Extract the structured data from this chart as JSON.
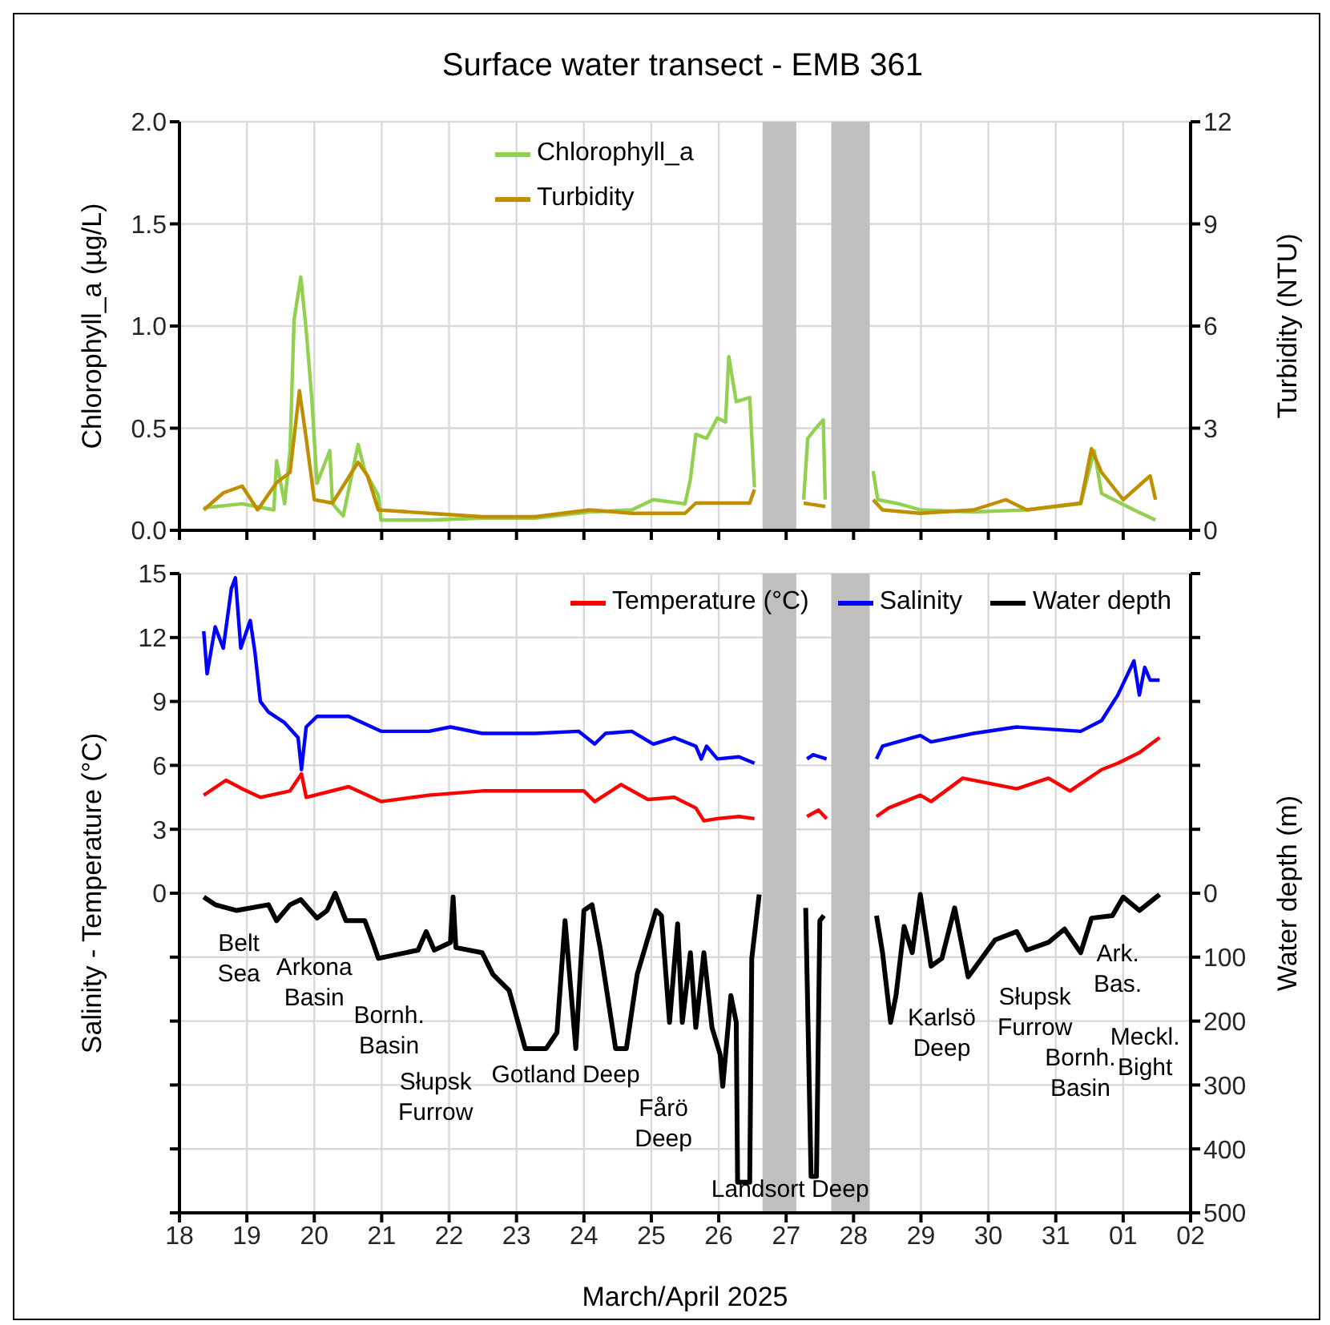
{
  "chart_data": [
    {
      "type": "line",
      "title": "Surface water transect - EMB 361",
      "ylabel": "Chlorophyll_a (µg/L)",
      "y2label": "Turbidity (NTU)",
      "xlim": [
        "2025-03-18",
        "2025-04-02"
      ],
      "xticks": [
        {
          "value": "2025-03-18",
          "label": null
        },
        {
          "value": "2025-03-19",
          "label": null
        },
        {
          "value": "2025-03-20",
          "label": null
        },
        {
          "value": "2025-03-21",
          "label": null
        },
        {
          "value": "2025-03-22",
          "label": null
        },
        {
          "value": "2025-03-23",
          "label": null
        },
        {
          "value": "2025-03-24",
          "label": null
        },
        {
          "value": "2025-03-25",
          "label": null
        },
        {
          "value": "2025-03-26",
          "label": null
        },
        {
          "value": "2025-03-27",
          "label": null
        },
        {
          "value": "2025-03-28",
          "label": null
        },
        {
          "value": "2025-03-29",
          "label": null
        },
        {
          "value": "2025-03-30",
          "label": null
        },
        {
          "value": "2025-03-31",
          "label": null
        },
        {
          "value": "2025-04-01",
          "label": null
        },
        {
          "value": "2025-04-02",
          "label": null
        }
      ],
      "ylim": [
        0,
        2
      ],
      "yticks": [
        {
          "value": 0,
          "label": "0.0"
        },
        0.5,
        {
          "value": 1,
          "label": "1.0"
        },
        1.5,
        {
          "value": 2,
          "label": "2.0"
        }
      ],
      "y2lim": [
        0,
        12
      ],
      "y2ticks": [
        0,
        3,
        6,
        9,
        12
      ],
      "tick_labels": "y",
      "grid": true,
      "legend": "top",
      "bands": [
        {
          "axis": "x",
          "from": "2025-03-26T15:36",
          "to": "2025-03-27T03:36",
          "color": "#bfbfbf"
        },
        {
          "axis": "x",
          "from": "2025-03-27T16:05",
          "to": "2025-03-28T05:46",
          "color": "#bfbfbf"
        }
      ],
      "series": [
        {
          "name": "Chlorophyll_a",
          "color": "#92d050",
          "x": [
            "2025-03-18T08:38",
            "2025-03-18T22:19",
            "2025-03-19T09:36",
            "2025-03-19T10:34",
            "2025-03-19T13:26",
            "2025-03-19T15:22",
            "2025-03-19T16:48",
            "2025-03-19T19:12",
            "2025-03-19T21:07",
            "2025-03-19T23:02",
            "2025-03-20T00:58",
            "2025-03-20T05:31",
            "2025-03-20T06:29",
            "2025-03-20T10:19",
            "2025-03-20T15:36",
            "2025-03-20T18:00",
            "2025-03-20T22:48",
            "2025-03-20T23:46",
            "2025-03-21T16:48",
            "2025-03-22T11:46",
            "2025-03-23T06:43",
            "2025-03-24T01:55",
            "2025-03-24T17:02",
            "2025-03-25T00:43",
            "2025-03-25T12:00",
            "2025-03-25T13:55",
            "2025-03-25T15:50",
            "2025-03-25T19:41",
            "2025-03-25T23:31",
            "2025-03-26T02:24",
            "2025-03-26T03:36",
            "2025-03-26T06:14",
            "2025-03-26T11:02",
            "2025-03-26T12:43",
            "2025-03-26T14:24",
            "2025-03-27T06:14",
            "2025-03-27T07:41",
            "2025-03-27T10:34",
            "2025-03-27T13:12",
            "2025-03-27T13:55",
            "2025-03-27T14:53",
            "2025-03-28T06:58",
            "2025-03-28T08:38",
            "2025-03-28T16:05",
            "2025-03-28T23:46",
            "2025-03-29T18:43",
            "2025-03-30T13:41",
            "2025-03-31T08:53",
            "2025-03-31T13:41",
            "2025-03-31T16:19",
            "2025-04-01T03:50",
            "2025-04-01T11:31"
          ],
          "values": [
            0.11,
            0.13,
            0.1,
            0.34,
            0.13,
            0.39,
            1.03,
            1.24,
            0.98,
            0.66,
            0.23,
            0.39,
            0.13,
            0.07,
            0.42,
            0.29,
            0.17,
            0.05,
            0.05,
            0.06,
            0.06,
            0.09,
            0.1,
            0.15,
            0.13,
            0.25,
            0.47,
            0.45,
            0.55,
            0.53,
            0.85,
            0.63,
            0.65,
            0.21,
            null,
            0.15,
            0.45,
            0.5,
            0.54,
            0.15,
            null,
            0.29,
            0.15,
            0.13,
            0.1,
            0.09,
            0.1,
            0.13,
            0.39,
            0.18,
            0.1,
            0.05
          ]
        },
        {
          "name": "Turbidity",
          "color": "#bf8f00",
          "axis": "y2",
          "x": [
            "2025-03-18T08:38",
            "2025-03-18T15:36",
            "2025-03-18T22:19",
            "2025-03-19T03:50",
            "2025-03-19T10:34",
            "2025-03-19T15:22",
            "2025-03-19T18:43",
            "2025-03-19T21:07",
            "2025-03-20T00:00",
            "2025-03-20T06:29",
            "2025-03-20T15:36",
            "2025-03-20T18:58",
            "2025-03-20T22:48",
            "2025-03-21T16:48",
            "2025-03-22T11:46",
            "2025-03-23T06:43",
            "2025-03-24T01:55",
            "2025-03-24T17:02",
            "2025-03-25T12:00",
            "2025-03-25T15:50",
            "2025-03-26T11:02",
            "2025-03-26T12:43",
            "2025-03-26T14:24",
            "2025-03-27T06:14",
            "2025-03-27T13:55",
            "2025-03-27T14:53",
            "2025-03-28T06:58",
            "2025-03-28T10:19",
            "2025-03-28T23:46",
            "2025-03-29T18:43",
            "2025-03-30T06:14",
            "2025-03-30T13:41",
            "2025-03-31T08:53",
            "2025-03-31T12:43",
            "2025-03-31T16:19",
            "2025-04-01T00:00",
            "2025-04-01T09:36",
            "2025-04-01T11:31"
          ],
          "values": [
            0.6,
            1.1,
            1.3,
            0.6,
            1.4,
            1.7,
            4.1,
            2.7,
            0.9,
            0.8,
            2.0,
            1.6,
            0.6,
            0.5,
            0.4,
            0.4,
            0.6,
            0.5,
            0.5,
            0.8,
            0.8,
            1.2,
            null,
            0.8,
            0.7,
            null,
            0.9,
            0.6,
            0.5,
            0.6,
            0.9,
            0.6,
            0.8,
            2.4,
            1.7,
            0.9,
            1.6,
            0.9
          ]
        }
      ]
    },
    {
      "type": "line",
      "ylabel": "Salinity -  Temperature (°C)",
      "y2label": "Water depth (m)",
      "xlabel": "March/April 2025",
      "xlim": [
        "2025-03-18",
        "2025-04-02"
      ],
      "xticks": [
        {
          "value": "2025-03-18",
          "label": "18"
        },
        {
          "value": "2025-03-19",
          "label": "19"
        },
        {
          "value": "2025-03-20",
          "label": "20"
        },
        {
          "value": "2025-03-21",
          "label": "21"
        },
        {
          "value": "2025-03-22",
          "label": "22"
        },
        {
          "value": "2025-03-23",
          "label": "23"
        },
        {
          "value": "2025-03-24",
          "label": "24"
        },
        {
          "value": "2025-03-25",
          "label": "25"
        },
        {
          "value": "2025-03-26",
          "label": "26"
        },
        {
          "value": "2025-03-27",
          "label": "27"
        },
        {
          "value": "2025-03-28",
          "label": "28"
        },
        {
          "value": "2025-03-29",
          "label": "29"
        },
        {
          "value": "2025-03-30",
          "label": "30"
        },
        {
          "value": "2025-03-31",
          "label": "31"
        },
        {
          "value": "2025-04-01",
          "label": "01"
        },
        {
          "value": "2025-04-02",
          "label": "02"
        }
      ],
      "ylim": [
        -15,
        15
      ],
      "yticks": [
        {
          "value": -15,
          "label": null
        },
        {
          "value": -12,
          "label": null
        },
        {
          "value": -9,
          "label": null
        },
        {
          "value": -6,
          "label": null
        },
        {
          "value": -3,
          "label": null
        },
        0,
        3,
        6,
        9,
        12,
        15
      ],
      "y2lim": [
        500,
        -500
      ],
      "y2ticks": [
        {
          "value": -500,
          "label": null
        },
        {
          "value": -400,
          "label": null
        },
        {
          "value": -300,
          "label": null
        },
        {
          "value": -200,
          "label": null
        },
        {
          "value": -100,
          "label": null
        },
        0,
        100,
        200,
        300,
        400,
        500
      ],
      "grid": true,
      "legend": "top right",
      "bands": [
        {
          "axis": "x",
          "from": "2025-03-26T15:36",
          "to": "2025-03-27T03:36",
          "color": "#bfbfbf"
        },
        {
          "axis": "x",
          "from": "2025-03-27T16:05",
          "to": "2025-03-28T05:46",
          "color": "#bfbfbf"
        }
      ],
      "annotations": [
        "Belt\nSea",
        "Arkona\nBasin",
        "Bornh.\nBasin",
        "Słupsk\nFurrow",
        "Gotland Deep",
        "Fårö\nDeep",
        "Landsort Deep",
        "Karlsö\nDeep",
        "Słupsk\nFurrow",
        "Bornh.\nBasin",
        "Ark.\nBas.",
        "Meckl.\nBight"
      ],
      "series": [
        {
          "name": "Temperature (°C)",
          "color": "#ff0000",
          "x": [
            "2025-03-18T08:38",
            "2025-03-18T16:34",
            "2025-03-18T22:19",
            "2025-03-19T04:48",
            "2025-03-19T15:22",
            "2025-03-19T19:26",
            "2025-03-19T21:07",
            "2025-03-20T12:14",
            "2025-03-20T23:46",
            "2025-03-21T16:48",
            "2025-03-22T11:46",
            "2025-03-23T06:43",
            "2025-03-24T00:00",
            "2025-03-24T03:50",
            "2025-03-24T13:12",
            "2025-03-24T22:48",
            "2025-03-25T08:10",
            "2025-03-25T15:50",
            "2025-03-25T18:43",
            "2025-03-25T23:31",
            "2025-03-26T07:12",
            "2025-03-26T12:43",
            "2025-03-26T14:24",
            "2025-03-27T07:26",
            "2025-03-27T11:31",
            "2025-03-27T14:24",
            "2025-03-27T14:53",
            "2025-03-28T08:10",
            "2025-03-28T12:29",
            "2025-03-28T23:46",
            "2025-03-29T03:36",
            "2025-03-29T14:53",
            "2025-03-30T10:05",
            "2025-03-30T21:22",
            "2025-03-31T05:02",
            "2025-03-31T16:19",
            "2025-03-31T22:05",
            "2025-04-01T05:46",
            "2025-04-01T12:58"
          ],
          "values": [
            4.6,
            5.3,
            4.9,
            4.5,
            4.8,
            5.6,
            4.5,
            5.0,
            4.3,
            4.6,
            4.8,
            4.8,
            4.8,
            4.3,
            5.1,
            4.4,
            4.5,
            4.0,
            3.4,
            3.5,
            3.6,
            3.5,
            null,
            3.6,
            3.9,
            3.5,
            null,
            3.6,
            4.0,
            4.6,
            4.3,
            5.4,
            4.9,
            5.4,
            4.8,
            5.8,
            6.1,
            6.6,
            7.3
          ]
        },
        {
          "name": "Salinity",
          "color": "#0000ff",
          "x": [
            "2025-03-18T08:38",
            "2025-03-18T09:50",
            "2025-03-18T12:43",
            "2025-03-18T15:36",
            "2025-03-18T18:29",
            "2025-03-18T19:55",
            "2025-03-18T21:50",
            "2025-03-19T01:12",
            "2025-03-19T02:53",
            "2025-03-19T04:48",
            "2025-03-19T07:41",
            "2025-03-19T13:26",
            "2025-03-19T18:14",
            "2025-03-19T19:26",
            "2025-03-19T21:07",
            "2025-03-20T00:58",
            "2025-03-20T12:14",
            "2025-03-20T23:46",
            "2025-03-21T16:48",
            "2025-03-22T00:29",
            "2025-03-22T11:46",
            "2025-03-23T06:43",
            "2025-03-23T22:05",
            "2025-03-24T03:50",
            "2025-03-24T07:41",
            "2025-03-24T17:02",
            "2025-03-25T00:43",
            "2025-03-25T08:10",
            "2025-03-25T15:50",
            "2025-03-25T17:46",
            "2025-03-25T19:41",
            "2025-03-25T23:31",
            "2025-03-26T07:12",
            "2025-03-26T12:43",
            "2025-03-26T14:24",
            "2025-03-27T07:26",
            "2025-03-27T09:36",
            "2025-03-27T14:24",
            "2025-03-27T14:53",
            "2025-03-28T08:10",
            "2025-03-28T10:19",
            "2025-03-28T23:46",
            "2025-03-29T03:36",
            "2025-03-29T18:43",
            "2025-03-30T10:05",
            "2025-03-31T08:53",
            "2025-03-31T16:19",
            "2025-03-31T22:05",
            "2025-04-01T03:50",
            "2025-04-01T05:46",
            "2025-04-01T07:41",
            "2025-04-01T09:36",
            "2025-04-01T12:58"
          ],
          "values": [
            12.3,
            10.3,
            12.5,
            11.5,
            14.3,
            14.8,
            11.5,
            12.8,
            11.3,
            9.0,
            8.5,
            8.0,
            7.3,
            5.8,
            7.8,
            8.3,
            8.3,
            7.6,
            7.6,
            7.8,
            7.5,
            7.5,
            7.6,
            7.0,
            7.5,
            7.6,
            7.0,
            7.3,
            6.9,
            6.3,
            6.9,
            6.3,
            6.4,
            6.1,
            null,
            6.3,
            6.5,
            6.3,
            null,
            6.3,
            6.9,
            7.4,
            7.1,
            7.5,
            7.8,
            7.6,
            8.1,
            9.3,
            10.9,
            9.3,
            10.6,
            10.0,
            10.0
          ]
        },
        {
          "name": "Water depth",
          "color": "#000000",
          "axis": "y2",
          "x": [
            "2025-03-18T08:38",
            "2025-03-18T12:43",
            "2025-03-18T20:24",
            "2025-03-19T07:41",
            "2025-03-19T10:34",
            "2025-03-19T15:22",
            "2025-03-19T19:12",
            "2025-03-20T00:58",
            "2025-03-20T04:34",
            "2025-03-20T07:26",
            "2025-03-20T11:17",
            "2025-03-20T18:00",
            "2025-03-20T20:53",
            "2025-03-20T22:48",
            "2025-03-21T12:58",
            "2025-03-21T15:50",
            "2025-03-21T18:43",
            "2025-03-22T00:29",
            "2025-03-22T01:26",
            "2025-03-22T02:24",
            "2025-03-22T11:46",
            "2025-03-22T15:36",
            "2025-03-22T21:22",
            "2025-03-23T03:07",
            "2025-03-23T10:34",
            "2025-03-23T14:24",
            "2025-03-23T17:17",
            "2025-03-23T21:07",
            "2025-03-24T00:00",
            "2025-03-24T02:53",
            "2025-03-24T05:46",
            "2025-03-24T11:17",
            "2025-03-24T15:07",
            "2025-03-24T18:58",
            "2025-03-25T01:41",
            "2025-03-25T03:36",
            "2025-03-25T06:29",
            "2025-03-25T09:22",
            "2025-03-25T11:02",
            "2025-03-25T13:55",
            "2025-03-25T15:50",
            "2025-03-25T18:43",
            "2025-03-25T21:36",
            "2025-03-26T00:29",
            "2025-03-26T01:26",
            "2025-03-26T04:19",
            "2025-03-26T06:14",
            "2025-03-26T06:43",
            "2025-03-26T11:02",
            "2025-03-26T11:46",
            "2025-03-26T14:24",
            "2025-03-26T15:36",
            "2025-03-27T06:58",
            "2025-03-27T08:53",
            "2025-03-27T10:48",
            "2025-03-27T12:00",
            "2025-03-27T13:26",
            "2025-03-27T21:36",
            "2025-03-28T08:10",
            "2025-03-28T10:19",
            "2025-03-28T13:12",
            "2025-03-28T15:07",
            "2025-03-28T18:00",
            "2025-03-28T20:53",
            "2025-03-28T23:46",
            "2025-03-29T03:36",
            "2025-03-29T07:26",
            "2025-03-29T12:00",
            "2025-03-29T16:48",
            "2025-03-30T02:24",
            "2025-03-30T10:05",
            "2025-03-30T13:41",
            "2025-03-30T21:22",
            "2025-03-31T03:07",
            "2025-03-31T08:53",
            "2025-03-31T12:43",
            "2025-03-31T20:10",
            "2025-04-01T00:00",
            "2025-04-01T05:46",
            "2025-04-01T12:58"
          ],
          "values": [
            6,
            18,
            27,
            18,
            43,
            18,
            10,
            39,
            27,
            0,
            43,
            43,
            77,
            102,
            89,
            60,
            89,
            77,
            6,
            85,
            93,
            127,
            152,
            243,
            243,
            218,
            43,
            243,
            27,
            18,
            85,
            243,
            243,
            127,
            27,
            35,
            202,
            48,
            202,
            93,
            210,
            93,
            210,
            252,
            302,
            160,
            202,
            452,
            452,
            102,
            2,
            null,
            23,
            443,
            443,
            43,
            35,
            null,
            35,
            93,
            202,
            160,
            52,
            93,
            2,
            114,
            102,
            23,
            131,
            73,
            60,
            89,
            77,
            56,
            93,
            39,
            35,
            6,
            27,
            2
          ]
        }
      ]
    }
  ]
}
